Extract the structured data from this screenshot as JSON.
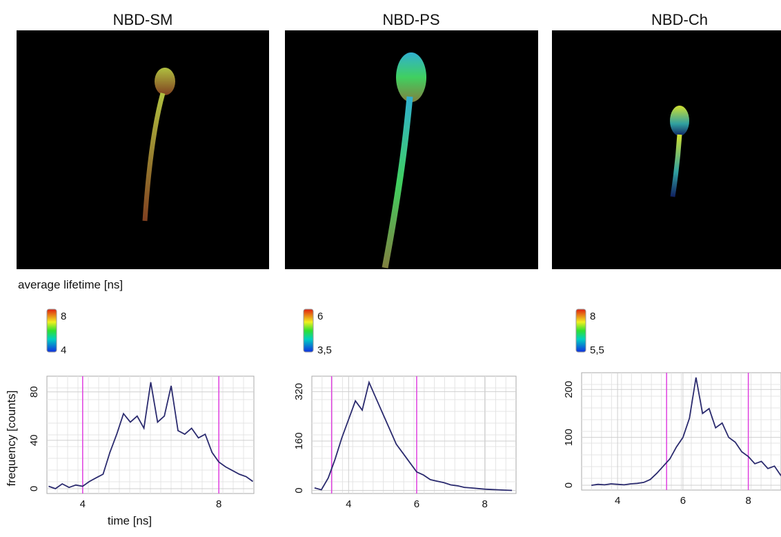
{
  "chart_data": [
    {
      "type": "line",
      "title": "NBD-SM",
      "colorbar_label": "average lifetime [ns]",
      "colorbar_ticks": [
        8,
        4
      ],
      "xlabel": "time [ns]",
      "ylabel": "frequency [counts]",
      "color": "#2a2a6e",
      "marker_color": "#e040e0",
      "markers": [
        4,
        8
      ],
      "x": [
        3.0,
        3.2,
        3.4,
        3.6,
        3.8,
        4.0,
        4.2,
        4.4,
        4.6,
        4.8,
        5.0,
        5.2,
        5.4,
        5.6,
        5.8,
        6.0,
        6.2,
        6.4,
        6.6,
        6.8,
        7.0,
        7.2,
        7.4,
        7.6,
        7.8,
        8.0,
        8.2,
        8.4,
        8.6,
        8.8,
        9.0
      ],
      "values": [
        2,
        0,
        4,
        1,
        3,
        2,
        6,
        9,
        12,
        30,
        45,
        62,
        55,
        60,
        50,
        88,
        55,
        60,
        85,
        48,
        45,
        50,
        42,
        45,
        30,
        22,
        18,
        15,
        12,
        10,
        6
      ],
      "xlim": [
        2.95,
        9.03
      ],
      "ylim": [
        -4,
        93
      ],
      "xticks": [
        4,
        8
      ],
      "yticks": [
        0,
        40,
        80
      ]
    },
    {
      "type": "line",
      "title": "NBD-PS",
      "colorbar_ticks": [
        6,
        {
          "value": 3.5,
          "label": "3,5"
        }
      ],
      "color": "#2a2a6e",
      "marker_color": "#e040e0",
      "markers": [
        3.5,
        6
      ],
      "x": [
        3.0,
        3.2,
        3.4,
        3.6,
        3.8,
        4.0,
        4.2,
        4.4,
        4.6,
        4.8,
        5.0,
        5.2,
        5.4,
        5.6,
        5.8,
        6.0,
        6.2,
        6.4,
        6.6,
        6.8,
        7.0,
        7.2,
        7.4,
        7.6,
        7.8,
        8.0,
        8.2,
        8.4,
        8.6,
        8.8
      ],
      "values": [
        8,
        2,
        40,
        100,
        170,
        230,
        290,
        260,
        350,
        300,
        250,
        200,
        150,
        120,
        90,
        60,
        50,
        35,
        30,
        25,
        18,
        15,
        10,
        8,
        6,
        4,
        3,
        2,
        1,
        0
      ],
      "xlim": [
        2.92,
        8.92
      ],
      "ylim": [
        -10,
        370
      ],
      "xticks": [
        4,
        6,
        8
      ],
      "yticks": [
        0,
        160,
        320
      ]
    },
    {
      "type": "line",
      "title": "NBD-Ch",
      "colorbar_ticks": [
        8,
        {
          "value": 5.5,
          "label": "5,5"
        }
      ],
      "color": "#2a2a6e",
      "marker_color": "#e040e0",
      "markers": [
        5.5,
        8
      ],
      "x": [
        3.2,
        3.4,
        3.6,
        3.8,
        4.0,
        4.2,
        4.4,
        4.6,
        4.8,
        5.0,
        5.2,
        5.4,
        5.6,
        5.8,
        6.0,
        6.2,
        6.4,
        6.6,
        6.8,
        7.0,
        7.2,
        7.4,
        7.6,
        7.8,
        8.0,
        8.2,
        8.4,
        8.6,
        8.8,
        9.0
      ],
      "values": [
        0,
        2,
        1,
        3,
        2,
        1,
        3,
        4,
        6,
        12,
        25,
        40,
        55,
        80,
        100,
        140,
        225,
        150,
        160,
        120,
        130,
        100,
        90,
        70,
        60,
        45,
        50,
        35,
        40,
        20
      ],
      "xlim": [
        2.9,
        9.0
      ],
      "ylim": [
        -10,
        235
      ],
      "xticks": [
        4,
        6,
        8
      ],
      "yticks": [
        0,
        100,
        200
      ]
    }
  ]
}
